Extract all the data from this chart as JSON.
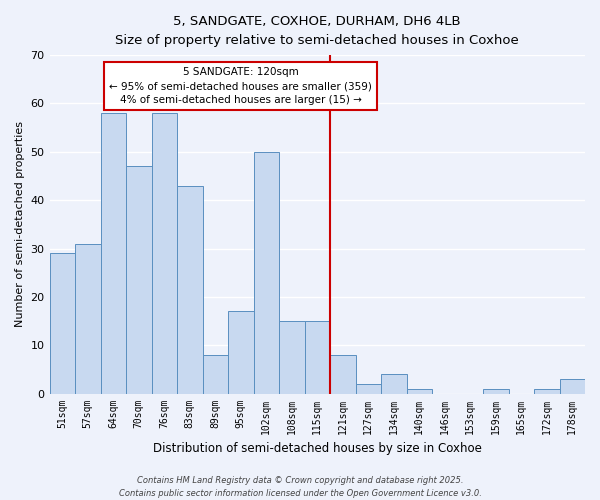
{
  "title": "5, SANDGATE, COXHOE, DURHAM, DH6 4LB",
  "subtitle": "Size of property relative to semi-detached houses in Coxhoe",
  "xlabel": "Distribution of semi-detached houses by size in Coxhoe",
  "ylabel": "Number of semi-detached properties",
  "bar_color": "#c8d9f0",
  "bar_edge_color": "#5a8fc0",
  "categories": [
    "51sqm",
    "57sqm",
    "64sqm",
    "70sqm",
    "76sqm",
    "83sqm",
    "89sqm",
    "95sqm",
    "102sqm",
    "108sqm",
    "115sqm",
    "121sqm",
    "127sqm",
    "134sqm",
    "140sqm",
    "146sqm",
    "153sqm",
    "159sqm",
    "165sqm",
    "172sqm",
    "178sqm"
  ],
  "values": [
    29,
    31,
    58,
    47,
    58,
    43,
    8,
    17,
    50,
    15,
    15,
    8,
    2,
    4,
    1,
    0,
    0,
    1,
    0,
    1,
    3
  ],
  "vline_index": 11,
  "vline_color": "#cc0000",
  "annotation_title": "5 SANDGATE: 120sqm",
  "annotation_line1": "← 95% of semi-detached houses are smaller (359)",
  "annotation_line2": "4% of semi-detached houses are larger (15) →",
  "ylim": [
    0,
    70
  ],
  "yticks": [
    0,
    10,
    20,
    30,
    40,
    50,
    60,
    70
  ],
  "footer1": "Contains HM Land Registry data © Crown copyright and database right 2025.",
  "footer2": "Contains public sector information licensed under the Open Government Licence v3.0.",
  "bg_color": "#eef2fb",
  "grid_color": "#ffffff"
}
